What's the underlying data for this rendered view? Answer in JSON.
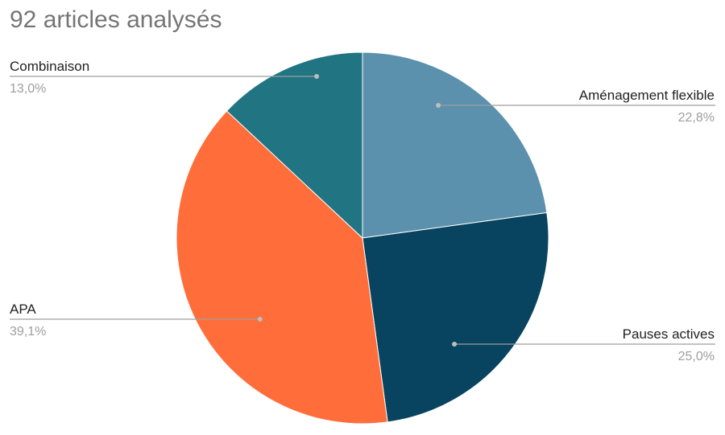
{
  "chart_data": {
    "type": "pie",
    "title": "92 articles analysés",
    "slices": [
      {
        "label": "Aménagement flexible",
        "value": 22.8,
        "value_label": "22,8%",
        "color": "#5b91ad"
      },
      {
        "label": "Pauses actives",
        "value": 25.0,
        "value_label": "25,0%",
        "color": "#08445f"
      },
      {
        "label": "APA",
        "value": 39.1,
        "value_label": "39,1%",
        "color": "#ff6d3b"
      },
      {
        "label": "Combinaison",
        "value": 13.0,
        "value_label": "13,0%",
        "color": "#217583"
      }
    ]
  }
}
